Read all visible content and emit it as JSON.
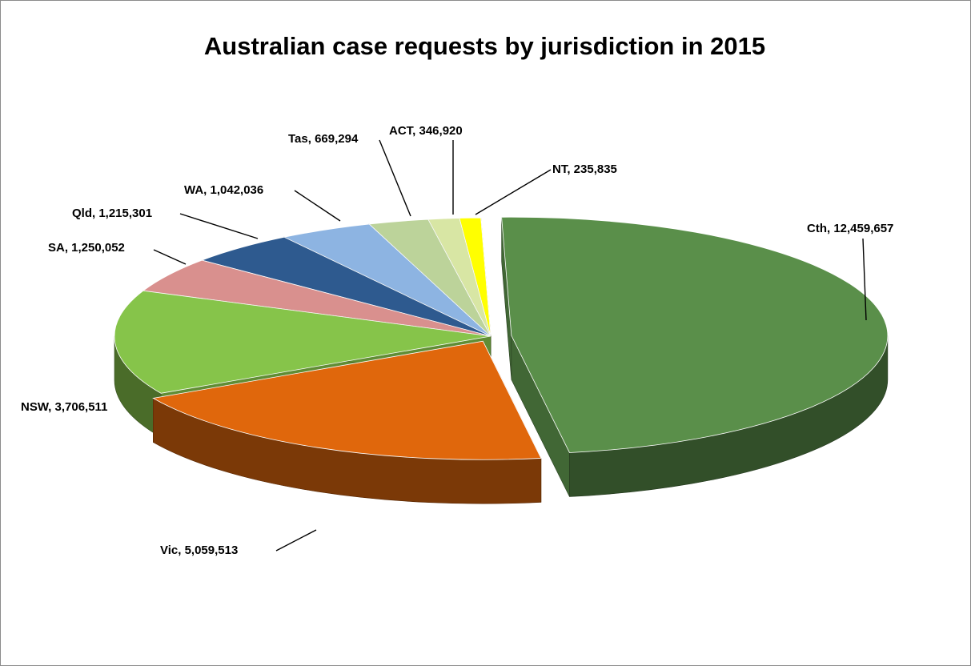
{
  "chart_data": {
    "type": "pie",
    "title": "Australian case requests by jurisdiction in 2015",
    "exploded": true,
    "three_d": true,
    "slices": [
      {
        "label": "Cth",
        "value": 12459657,
        "value_text": "12,459,657",
        "color": "#5a8f4a"
      },
      {
        "label": "Vic",
        "value": 5059513,
        "value_text": "5,059,513",
        "color": "#e0670c"
      },
      {
        "label": "NSW",
        "value": 3706511,
        "value_text": "3,706,511",
        "color": "#86c44a"
      },
      {
        "label": "SA",
        "value": 1250052,
        "value_text": "1,250,052",
        "color": "#d9908e"
      },
      {
        "label": "Qld",
        "value": 1215301,
        "value_text": "1,215,301",
        "color": "#2e5a8f"
      },
      {
        "label": "WA",
        "value": 1042036,
        "value_text": "1,042,036",
        "color": "#8db4e2"
      },
      {
        "label": "Tas",
        "value": 669294,
        "value_text": "669,294",
        "color": "#bcd39a"
      },
      {
        "label": "ACT",
        "value": 346920,
        "value_text": "346,920",
        "color": "#d8e6a4"
      },
      {
        "label": "NT",
        "value": 235835,
        "value_text": "235,835",
        "color": "#ffff00"
      }
    ],
    "legend": "none"
  }
}
